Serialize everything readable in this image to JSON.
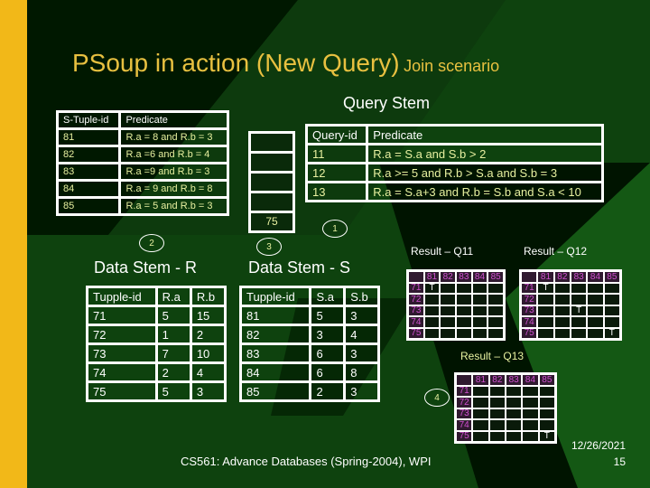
{
  "title": {
    "main": "PSoup in action (New Query)",
    "sub": "Join scenario"
  },
  "query_stem": {
    "label": "Query Stem",
    "headers": [
      "Query-id",
      "Predicate"
    ],
    "rows": [
      [
        "11",
        "R.a = S.a and S.b > 2"
      ],
      [
        "12",
        "R.a >= 5 and R.b > S.a and S.b = 3"
      ],
      [
        "13",
        "R.a = S.a+3 and R.b = S.b and S.a < 10"
      ]
    ]
  },
  "s_predicates": {
    "headers": [
      "S-Tuple-id",
      "Predicate"
    ],
    "rows": [
      [
        "81",
        "R.a = 8 and R.b = 3"
      ],
      [
        "82",
        "R.a =6 and R.b = 4"
      ],
      [
        "83",
        "R.a =9 and R.b = 3"
      ],
      [
        "84",
        "R.a = 9 and R.b = 8"
      ],
      [
        "85",
        "R.a = 5 and R.b = 3"
      ]
    ]
  },
  "stack": [
    "",
    "",
    "",
    "",
    "75"
  ],
  "steps": [
    "1",
    "2",
    "3",
    "4"
  ],
  "data_stem_r": {
    "label": "Data Stem - R",
    "headers": [
      "Tupple-id",
      "R.a",
      "R.b"
    ],
    "rows": [
      [
        "71",
        "5",
        "15"
      ],
      [
        "72",
        "1",
        "2"
      ],
      [
        "73",
        "7",
        "10"
      ],
      [
        "74",
        "2",
        "4"
      ],
      [
        "75",
        "5",
        "3"
      ]
    ]
  },
  "data_stem_s": {
    "label": "Data Stem - S",
    "headers": [
      "Tupple-id",
      "S.a",
      "S.b"
    ],
    "rows": [
      [
        "81",
        "5",
        "3"
      ],
      [
        "82",
        "3",
        "4"
      ],
      [
        "83",
        "6",
        "3"
      ],
      [
        "84",
        "6",
        "8"
      ],
      [
        "85",
        "2",
        "3"
      ]
    ]
  },
  "results": [
    {
      "label": "Result – Q11",
      "cols": [
        "81",
        "82",
        "83",
        "84",
        "85"
      ],
      "rows": [
        "71",
        "72",
        "73",
        "74",
        "75"
      ],
      "marks": [
        [
          "T",
          "",
          "",
          "",
          ""
        ],
        [
          "",
          "",
          "",
          "",
          ""
        ],
        [
          "",
          "",
          "",
          "",
          ""
        ],
        [
          "",
          "",
          "",
          "",
          ""
        ],
        [
          "",
          "",
          "",
          "",
          ""
        ]
      ]
    },
    {
      "label": "Result – Q12",
      "cols": [
        "81",
        "82",
        "83",
        "84",
        "85"
      ],
      "rows": [
        "71",
        "72",
        "73",
        "74",
        "75"
      ],
      "marks": [
        [
          "T",
          "",
          "",
          "",
          ""
        ],
        [
          "",
          "",
          "",
          "",
          ""
        ],
        [
          "",
          "",
          "T",
          "",
          ""
        ],
        [
          "",
          "",
          "",
          "",
          ""
        ],
        [
          "",
          "",
          "",
          "",
          "T"
        ]
      ]
    },
    {
      "label": "Result – Q13",
      "cols": [
        "81",
        "82",
        "83",
        "84",
        "85"
      ],
      "rows": [
        "71",
        "72",
        "73",
        "74",
        "75"
      ],
      "marks": [
        [
          "",
          "",
          "",
          "",
          ""
        ],
        [
          "",
          "",
          "",
          "",
          ""
        ],
        [
          "",
          "",
          "",
          "",
          ""
        ],
        [
          "",
          "",
          "",
          "",
          ""
        ],
        [
          "",
          "",
          "",
          "",
          "T"
        ]
      ]
    }
  ],
  "footer": {
    "course": "CS561: Advance Databases (Spring-2004), WPI",
    "date": "12/26/2021",
    "page": "15"
  },
  "colors": {
    "accent_stripe": "#f2b818",
    "title": "#e8c040",
    "text": "#e8f0a0",
    "header_cells": "#d050d0"
  }
}
